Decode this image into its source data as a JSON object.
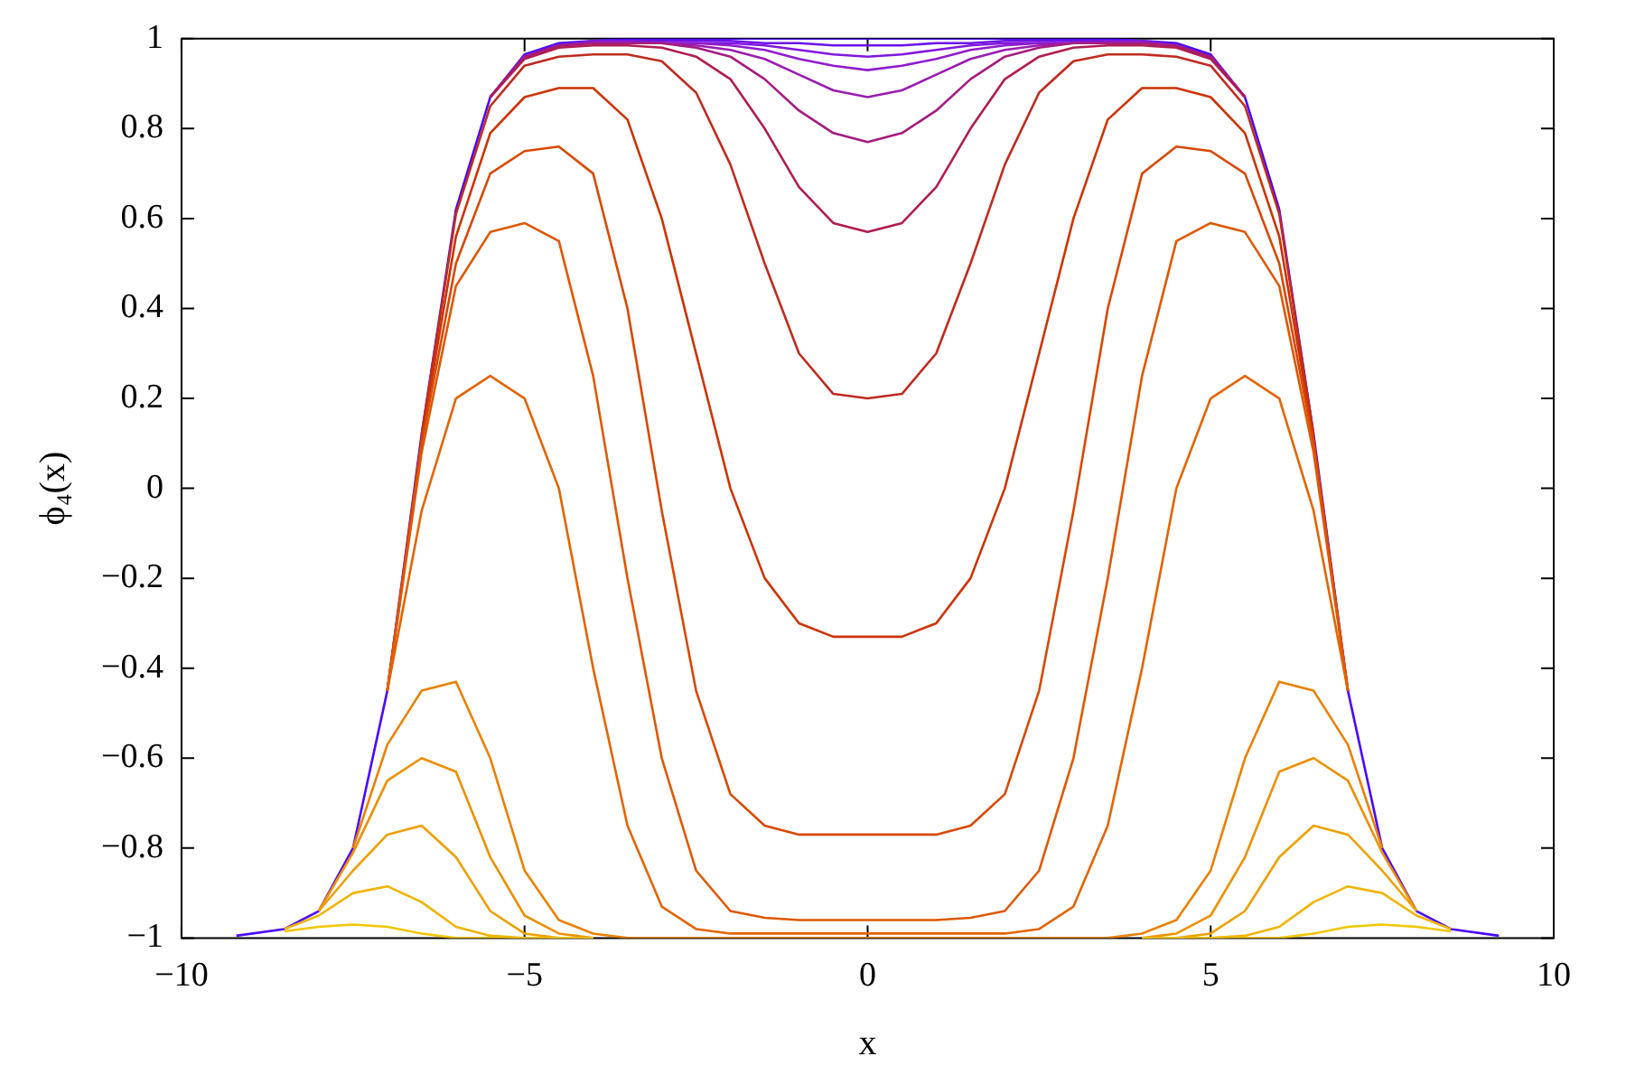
{
  "chart_data": {
    "type": "line",
    "xlabel": "x",
    "ylabel": "ϕ₄(x)",
    "xlim": [
      -10,
      10
    ],
    "ylim": [
      -1,
      1
    ],
    "xticks": [
      {
        "value": -10,
        "label": "−10"
      },
      {
        "value": -5,
        "label": "−5"
      },
      0,
      5,
      10
    ],
    "yticks": [
      {
        "value": -1,
        "label": "−1"
      },
      {
        "value": -0.8,
        "label": "−0.8"
      },
      {
        "value": -0.6,
        "label": "−0.6"
      },
      {
        "value": -0.4,
        "label": "−0.4"
      },
      {
        "value": -0.2,
        "label": "−0.2"
      },
      0,
      0.2,
      0.4,
      0.6,
      0.8,
      1
    ],
    "x": [
      -9.2,
      -8.5,
      -8,
      -7.5,
      -7,
      -6.5,
      -6,
      -5.5,
      -5,
      -4.5,
      -4,
      -3.5,
      -3,
      -2.5,
      -2,
      -1.5,
      -1,
      -0.5,
      0,
      0.5,
      1,
      1.5,
      2,
      2.5,
      3,
      3.5,
      4,
      4.5,
      5,
      5.5,
      6,
      6.5,
      7,
      7.5,
      8,
      8.5,
      9.2
    ],
    "series": [
      {
        "color": "#f2c600",
        "values": [
          null,
          -0.985,
          -0.975,
          -0.97,
          -0.975,
          -0.99,
          -1,
          -1,
          -1,
          -1,
          -1,
          null,
          null,
          null,
          null,
          null,
          null,
          null,
          null,
          null,
          null,
          null,
          null,
          null,
          null,
          null,
          -1,
          -1,
          -1,
          -1,
          -1,
          -0.99,
          -0.975,
          -0.97,
          -0.975,
          -0.985,
          null
        ]
      },
      {
        "color": "#f0b400",
        "values": [
          null,
          -0.98,
          -0.95,
          -0.9,
          -0.885,
          -0.92,
          -0.975,
          -0.995,
          -1,
          -1,
          -1,
          null,
          null,
          null,
          null,
          null,
          null,
          null,
          null,
          null,
          null,
          null,
          null,
          null,
          null,
          null,
          -1,
          -1,
          -1,
          -0.995,
          -0.975,
          -0.92,
          -0.885,
          -0.9,
          -0.95,
          -0.98,
          null
        ]
      },
      {
        "color": "#eea000",
        "values": [
          null,
          null,
          -0.94,
          -0.85,
          -0.77,
          -0.75,
          -0.82,
          -0.94,
          -0.99,
          -1,
          -1,
          null,
          null,
          null,
          null,
          null,
          null,
          null,
          null,
          null,
          null,
          null,
          null,
          null,
          null,
          null,
          -1,
          -1,
          -0.99,
          -0.94,
          -0.82,
          -0.75,
          -0.77,
          -0.85,
          -0.94,
          null,
          null
        ]
      },
      {
        "color": "#ec9000",
        "values": [
          null,
          null,
          -0.94,
          -0.81,
          -0.65,
          -0.6,
          -0.63,
          -0.82,
          -0.95,
          -0.99,
          -1,
          null,
          null,
          null,
          null,
          null,
          null,
          null,
          null,
          null,
          null,
          null,
          null,
          null,
          null,
          null,
          -1,
          -0.99,
          -0.95,
          -0.82,
          -0.63,
          -0.6,
          -0.65,
          -0.81,
          -0.94,
          null,
          null
        ]
      },
      {
        "color": "#e98000",
        "values": [
          null,
          null,
          null,
          -0.8,
          -0.57,
          -0.45,
          -0.43,
          -0.6,
          -0.85,
          -0.96,
          -0.99,
          -1,
          -1,
          -1,
          -1,
          -1,
          -1,
          -1,
          -1,
          -1,
          -1,
          -1,
          -1,
          -1,
          -1,
          -1,
          -0.99,
          -0.96,
          -0.85,
          -0.6,
          -0.43,
          -0.45,
          -0.57,
          -0.8,
          null,
          null,
          null
        ]
      },
      {
        "color": "#e26400",
        "values": [
          null,
          null,
          null,
          null,
          -0.45,
          -0.05,
          0.2,
          0.25,
          0.2,
          0,
          -0.4,
          -0.75,
          -0.93,
          -0.98,
          -0.99,
          -0.99,
          -0.99,
          -0.99,
          -0.99,
          -0.99,
          -0.99,
          -0.99,
          -0.99,
          -0.98,
          -0.93,
          -0.75,
          -0.4,
          0,
          0.2,
          0.25,
          0.2,
          -0.05,
          -0.45,
          null,
          null,
          null,
          null
        ]
      },
      {
        "color": "#de5800",
        "values": [
          null,
          null,
          null,
          null,
          -0.45,
          0.08,
          0.45,
          0.57,
          0.59,
          0.55,
          0.25,
          -0.2,
          -0.6,
          -0.85,
          -0.94,
          -0.955,
          -0.96,
          -0.96,
          -0.96,
          -0.96,
          -0.96,
          -0.955,
          -0.94,
          -0.85,
          -0.6,
          -0.2,
          0.25,
          0.55,
          0.59,
          0.57,
          0.45,
          0.08,
          -0.45,
          null,
          null,
          null,
          null
        ]
      },
      {
        "color": "#d84800",
        "values": [
          null,
          null,
          null,
          null,
          -0.45,
          0.1,
          0.5,
          0.7,
          0.75,
          0.76,
          0.7,
          0.4,
          -0.05,
          -0.45,
          -0.68,
          -0.75,
          -0.77,
          -0.77,
          -0.77,
          -0.77,
          -0.77,
          -0.75,
          -0.68,
          -0.45,
          -0.05,
          0.4,
          0.7,
          0.76,
          0.75,
          0.7,
          0.5,
          0.1,
          -0.45,
          null,
          null,
          null,
          null
        ]
      },
      {
        "color": "#cc3300",
        "values": [
          null,
          null,
          null,
          null,
          -0.45,
          0.11,
          0.56,
          0.79,
          0.87,
          0.89,
          0.89,
          0.82,
          0.6,
          0.3,
          0,
          -0.2,
          -0.3,
          -0.33,
          -0.33,
          -0.33,
          -0.3,
          -0.2,
          0,
          0.3,
          0.6,
          0.82,
          0.89,
          0.89,
          0.87,
          0.79,
          0.56,
          0.11,
          -0.45,
          null,
          null,
          null,
          null
        ]
      },
      {
        "color": "#bf2b20",
        "values": [
          null,
          null,
          null,
          null,
          null,
          0.12,
          0.61,
          0.85,
          0.94,
          0.96,
          0.965,
          0.965,
          0.95,
          0.88,
          0.72,
          0.5,
          0.3,
          0.21,
          0.2,
          0.21,
          0.3,
          0.5,
          0.72,
          0.88,
          0.95,
          0.965,
          0.965,
          0.96,
          0.94,
          0.85,
          0.61,
          0.12,
          null,
          null,
          null,
          null,
          null
        ]
      },
      {
        "color": "#b01c50",
        "values": [
          null,
          null,
          null,
          null,
          null,
          null,
          null,
          0.87,
          0.955,
          0.98,
          0.985,
          0.985,
          0.98,
          0.96,
          0.91,
          0.8,
          0.67,
          0.59,
          0.57,
          0.59,
          0.67,
          0.8,
          0.91,
          0.96,
          0.98,
          0.985,
          0.985,
          0.98,
          0.955,
          0.87,
          null,
          null,
          null,
          null,
          null,
          null,
          null
        ]
      },
      {
        "color": "#a41c80",
        "values": [
          null,
          null,
          null,
          null,
          null,
          null,
          null,
          0.87,
          0.96,
          0.985,
          0.99,
          0.99,
          0.99,
          0.98,
          0.96,
          0.91,
          0.84,
          0.79,
          0.77,
          0.79,
          0.84,
          0.91,
          0.96,
          0.98,
          0.99,
          0.99,
          0.99,
          0.985,
          0.96,
          0.87,
          null,
          null,
          null,
          null,
          null,
          null,
          null
        ]
      },
      {
        "color": "#9a1cb0",
        "values": [
          null,
          null,
          null,
          null,
          null,
          null,
          null,
          0.87,
          0.96,
          0.985,
          0.99,
          0.99,
          0.99,
          0.985,
          0.975,
          0.955,
          0.92,
          0.885,
          0.87,
          0.885,
          0.92,
          0.955,
          0.975,
          0.985,
          0.99,
          0.99,
          0.99,
          0.985,
          0.96,
          0.87,
          null,
          null,
          null,
          null,
          null,
          null,
          null
        ]
      },
      {
        "color": "#901ccc",
        "values": [
          null,
          null,
          null,
          null,
          null,
          null,
          null,
          0.87,
          0.96,
          0.985,
          0.99,
          0.99,
          0.99,
          0.99,
          0.985,
          0.975,
          0.955,
          0.94,
          0.93,
          0.94,
          0.955,
          0.975,
          0.985,
          0.99,
          0.99,
          0.99,
          0.99,
          0.985,
          0.96,
          0.87,
          null,
          null,
          null,
          null,
          null,
          null,
          null
        ]
      },
      {
        "color": "#8018dc",
        "values": [
          null,
          null,
          null,
          null,
          null,
          null,
          null,
          0.87,
          0.96,
          0.985,
          0.995,
          0.995,
          0.99,
          0.99,
          0.99,
          0.985,
          0.975,
          0.965,
          0.96,
          0.965,
          0.975,
          0.985,
          0.99,
          0.99,
          0.99,
          0.995,
          0.995,
          0.985,
          0.96,
          0.87,
          null,
          null,
          null,
          null,
          null,
          null,
          null
        ]
      },
      {
        "color": "#6c12ea",
        "values": [
          null,
          null,
          null,
          null,
          null,
          null,
          null,
          0.87,
          0.96,
          0.985,
          0.995,
          0.995,
          0.995,
          0.995,
          0.995,
          0.99,
          0.99,
          0.985,
          0.985,
          0.985,
          0.99,
          0.99,
          0.995,
          0.995,
          0.995,
          0.995,
          0.995,
          0.985,
          0.96,
          0.87,
          null,
          null,
          null,
          null,
          null,
          null,
          null
        ]
      },
      {
        "color": "#4a08ff",
        "values": [
          -0.995,
          -0.98,
          -0.94,
          -0.8,
          -0.45,
          0.12,
          0.62,
          0.87,
          0.965,
          0.99,
          0.995,
          1,
          1,
          1,
          1,
          1,
          1,
          1,
          1,
          1,
          1,
          1,
          1,
          1,
          1,
          1,
          0.995,
          0.99,
          0.965,
          0.87,
          0.62,
          0.12,
          -0.45,
          -0.8,
          -0.94,
          -0.98,
          -0.995
        ]
      }
    ]
  }
}
